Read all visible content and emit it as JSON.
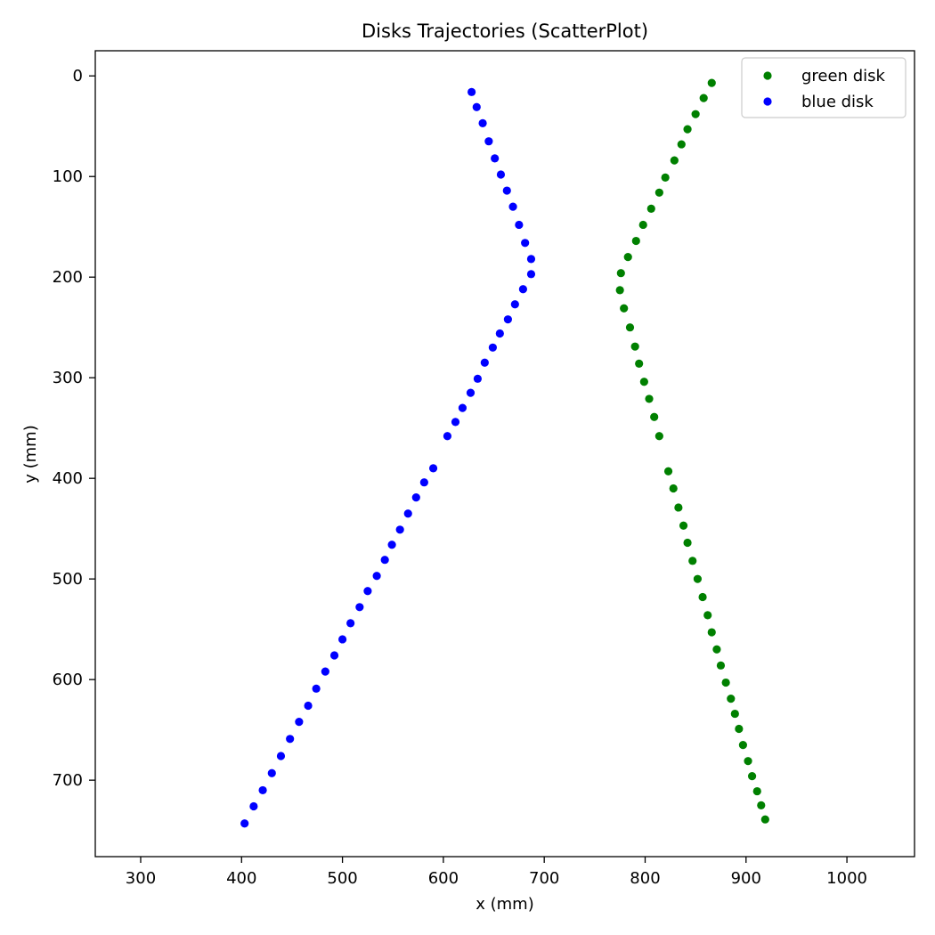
{
  "chart_data": {
    "type": "scatter",
    "title": "Disks Trajectories (ScatterPlot)",
    "xlabel": "x (mm)",
    "ylabel": "y (mm)",
    "xlim": [
      255,
      1067
    ],
    "ylim": [
      776,
      -25
    ],
    "y_inverted": true,
    "x_ticks": [
      300,
      400,
      500,
      600,
      700,
      800,
      900,
      1000
    ],
    "y_ticks": [
      0,
      100,
      200,
      300,
      400,
      500,
      600,
      700
    ],
    "grid": false,
    "legend_position": "top-right",
    "series": [
      {
        "name": "green disk",
        "color": "#008000",
        "x": [
          866,
          858,
          850,
          842,
          836,
          829,
          820,
          814,
          806,
          798,
          791,
          783,
          776,
          775,
          779,
          785,
          790,
          794,
          799,
          804,
          809,
          814,
          823,
          828,
          833,
          838,
          842,
          847,
          852,
          857,
          862,
          866,
          871,
          875,
          880,
          885,
          889,
          893,
          897,
          902,
          906,
          911,
          915,
          919
        ],
        "y": [
          7,
          22,
          38,
          53,
          68,
          84,
          101,
          116,
          132,
          148,
          164,
          180,
          196,
          213,
          231,
          250,
          269,
          286,
          304,
          321,
          339,
          358,
          393,
          410,
          429,
          447,
          464,
          482,
          500,
          518,
          536,
          553,
          570,
          586,
          603,
          619,
          634,
          649,
          665,
          681,
          696,
          711,
          725,
          739
        ]
      },
      {
        "name": "blue disk",
        "color": "#0000ff",
        "x": [
          628,
          633,
          639,
          645,
          651,
          657,
          663,
          669,
          675,
          681,
          687,
          687,
          679,
          671,
          664,
          656,
          649,
          641,
          634,
          627,
          619,
          612,
          604,
          590,
          581,
          573,
          565,
          557,
          549,
          542,
          534,
          525,
          517,
          508,
          500,
          492,
          483,
          474,
          466,
          457,
          448,
          439,
          430,
          421,
          412,
          403
        ],
        "y": [
          16,
          31,
          47,
          65,
          82,
          98,
          114,
          130,
          148,
          166,
          182,
          197,
          212,
          227,
          242,
          256,
          270,
          285,
          301,
          315,
          330,
          344,
          358,
          390,
          404,
          419,
          435,
          451,
          466,
          481,
          497,
          512,
          528,
          544,
          560,
          576,
          592,
          609,
          626,
          642,
          659,
          676,
          693,
          710,
          726,
          743
        ]
      }
    ]
  }
}
